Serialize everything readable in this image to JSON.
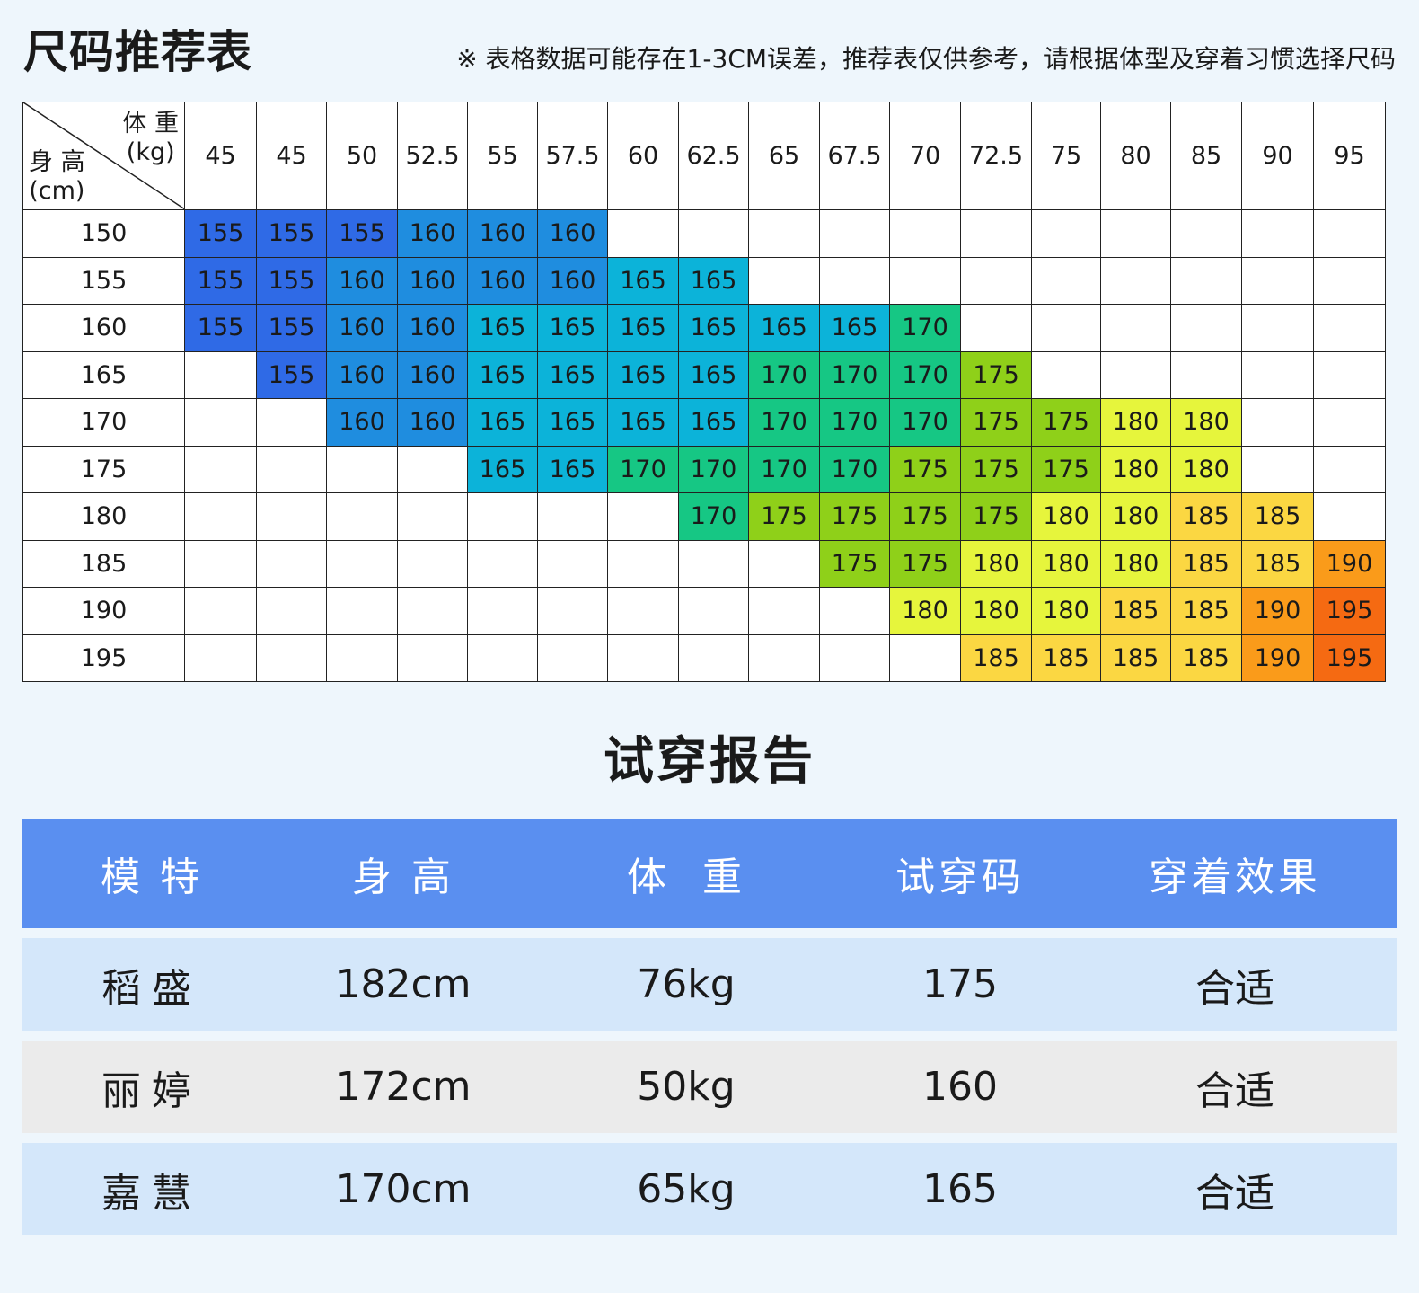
{
  "title": "尺码推荐表",
  "note": "※ 表格数据可能存在1-3CM误差，推荐表仅供参考，请根据体型及穿着习惯选择尺码",
  "size_chart": {
    "corner_weight": "体 重\n(kg)",
    "corner_height": "身 高\n(cm)",
    "weights": [
      "45",
      "45",
      "50",
      "52.5",
      "55",
      "57.5",
      "60",
      "62.5",
      "65",
      "67.5",
      "70",
      "72.5",
      "75",
      "80",
      "85",
      "90",
      "95"
    ],
    "rows": [
      {
        "height": "150",
        "cells": [
          "155",
          "155",
          "155",
          "160",
          "160",
          "160",
          "",
          "",
          "",
          "",
          "",
          "",
          "",
          "",
          "",
          "",
          ""
        ]
      },
      {
        "height": "155",
        "cells": [
          "155",
          "155",
          "160",
          "160",
          "160",
          "160",
          "165",
          "165",
          "",
          "",
          "",
          "",
          "",
          "",
          "",
          "",
          ""
        ]
      },
      {
        "height": "160",
        "cells": [
          "155",
          "155",
          "160",
          "160",
          "165",
          "165",
          "165",
          "165",
          "165",
          "165",
          "170",
          "",
          "",
          "",
          "",
          "",
          ""
        ]
      },
      {
        "height": "165",
        "cells": [
          "",
          "155",
          "160",
          "160",
          "165",
          "165",
          "165",
          "165",
          "170",
          "170",
          "170",
          "175",
          "",
          "",
          "",
          "",
          ""
        ]
      },
      {
        "height": "170",
        "cells": [
          "",
          "",
          "160",
          "160",
          "165",
          "165",
          "165",
          "165",
          "170",
          "170",
          "170",
          "175",
          "175",
          "180",
          "180",
          "",
          ""
        ]
      },
      {
        "height": "175",
        "cells": [
          "",
          "",
          "",
          "",
          "165",
          "165",
          "170",
          "170",
          "170",
          "170",
          "175",
          "175",
          "175",
          "180",
          "180",
          "",
          ""
        ]
      },
      {
        "height": "180",
        "cells": [
          "",
          "",
          "",
          "",
          "",
          "",
          "",
          "170",
          "175",
          "175",
          "175",
          "175",
          "180",
          "180",
          "185",
          "185",
          ""
        ]
      },
      {
        "height": "185",
        "cells": [
          "",
          "",
          "",
          "",
          "",
          "",
          "",
          "",
          "",
          "175",
          "175",
          "180",
          "180",
          "180",
          "185",
          "185",
          "190"
        ]
      },
      {
        "height": "190",
        "cells": [
          "",
          "",
          "",
          "",
          "",
          "",
          "",
          "",
          "",
          "",
          "180",
          "180",
          "180",
          "185",
          "185",
          "190",
          "195"
        ]
      },
      {
        "height": "195",
        "cells": [
          "",
          "",
          "",
          "",
          "",
          "",
          "",
          "",
          "",
          "",
          "",
          "185",
          "185",
          "185",
          "185",
          "190",
          "195"
        ]
      }
    ],
    "size_colors": {
      "155": "#2f6ae6",
      "160": "#1f8ddf",
      "165": "#0cb3d9",
      "170": "#16c784",
      "175": "#8fd019",
      "180": "#e6f53c",
      "185": "#fbd742",
      "190": "#fa9b1a",
      "195": "#f56a12"
    },
    "colors_cell_150": {
      "c0": "#2f6ae6",
      "c1": "#2f6ae6",
      "c2": "#2f5fe3"
    }
  },
  "report": {
    "title": "试穿报告",
    "headers": [
      "模 特",
      "身 高",
      "体  重",
      "试穿码",
      "穿着效果"
    ],
    "rows": [
      {
        "model": "稻盛",
        "height": "182cm",
        "weight": "76kg",
        "size": "175",
        "effect": "合适"
      },
      {
        "model": "丽婷",
        "height": "172cm",
        "weight": "50kg",
        "size": "160",
        "effect": "合适"
      },
      {
        "model": "嘉慧",
        "height": "170cm",
        "weight": "65kg",
        "size": "165",
        "effect": "合适"
      }
    ],
    "colors": {
      "header": "#5a8ff0",
      "row_blue": "#d4e7fa",
      "row_gray": "#ebebeb"
    }
  }
}
